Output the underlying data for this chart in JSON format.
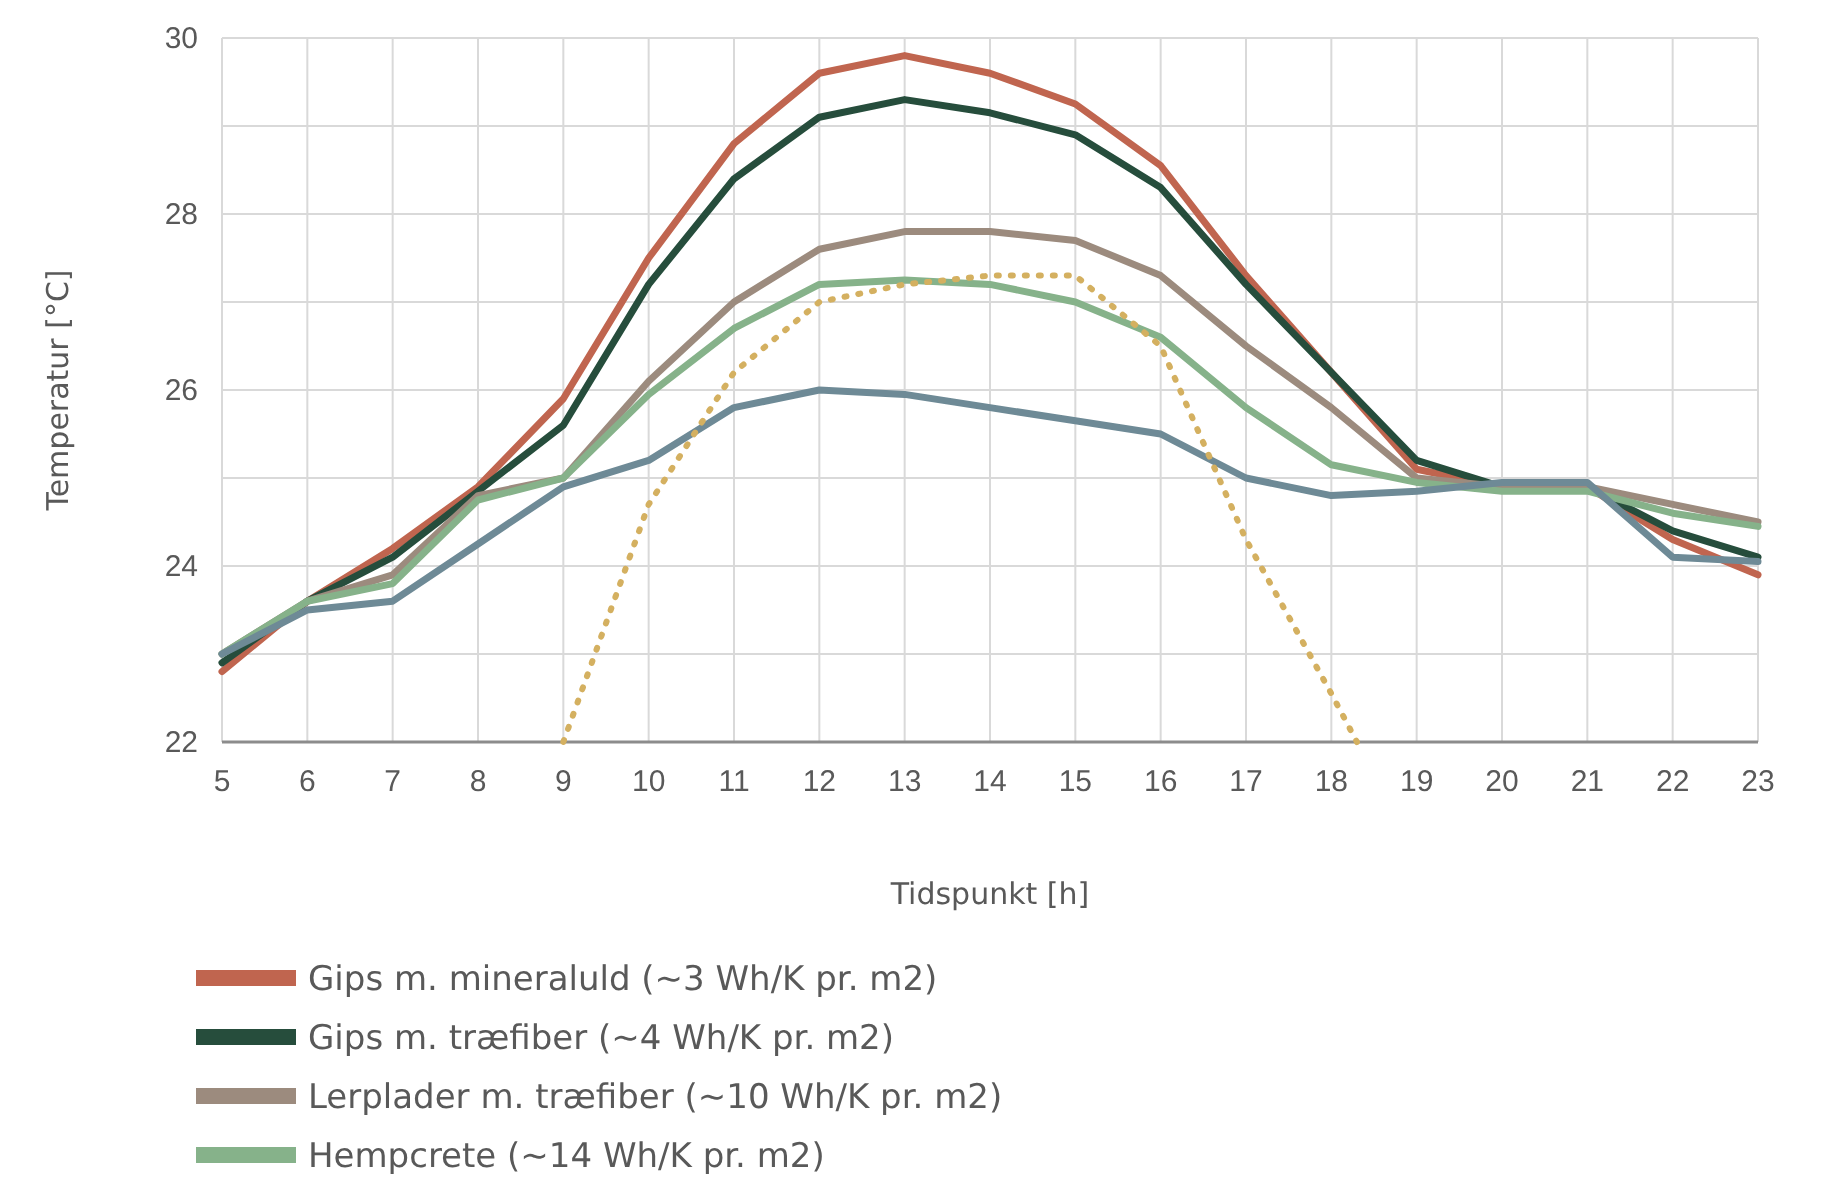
{
  "chart_data": {
    "type": "line",
    "xlabel": "Tidspunkt [h]",
    "ylabel": "Temperatur [°C]",
    "x": [
      5,
      6,
      7,
      8,
      9,
      10,
      11,
      12,
      13,
      14,
      15,
      16,
      17,
      18,
      19,
      20,
      21,
      22,
      23
    ],
    "xlim": [
      5,
      23
    ],
    "xticks": [
      5,
      6,
      7,
      8,
      9,
      10,
      11,
      12,
      13,
      14,
      15,
      16,
      17,
      18,
      19,
      20,
      21,
      22,
      23
    ],
    "ylim": [
      22,
      30
    ],
    "yticks": [
      22,
      {
        "value": 23,
        "label": null
      },
      24,
      {
        "value": 25,
        "label": null
      },
      26,
      {
        "value": 27,
        "label": null
      },
      28,
      {
        "value": 29,
        "label": null
      },
      30
    ],
    "grid": true,
    "legend": "bottom",
    "line_style": "solid",
    "marker": "none",
    "series": [
      {
        "name": "Gips m. mineraluld (~3 Wh/K pr. m2)",
        "color": "#c0654f",
        "values": [
          22.8,
          23.6,
          24.2,
          24.9,
          25.9,
          27.5,
          28.8,
          29.6,
          29.8,
          29.6,
          29.25,
          28.55,
          27.3,
          26.2,
          25.1,
          24.9,
          24.9,
          24.3,
          23.9
        ]
      },
      {
        "name": "Gips m. træfiber (~4 Wh/K pr. m2)",
        "color": "#264d3c",
        "values": [
          22.9,
          23.6,
          24.1,
          24.85,
          25.6,
          27.2,
          28.4,
          29.1,
          29.3,
          29.15,
          28.9,
          28.3,
          27.2,
          26.2,
          25.2,
          24.9,
          24.9,
          24.4,
          24.1
        ]
      },
      {
        "name": "Lerplader m. træfiber (~10 Wh/K pr. m2)",
        "color": "#9c8b7e",
        "values": [
          23.0,
          23.6,
          23.9,
          24.8,
          25.0,
          26.1,
          27.0,
          27.6,
          27.8,
          27.8,
          27.7,
          27.3,
          26.5,
          25.8,
          25.0,
          24.9,
          24.9,
          24.7,
          24.5
        ]
      },
      {
        "name": "Hempcrete (~14 Wh/K pr. m2)",
        "color": "#86b28a",
        "values": [
          23.0,
          23.6,
          23.8,
          24.75,
          25.0,
          25.95,
          26.7,
          27.2,
          27.25,
          27.2,
          27.0,
          26.6,
          25.8,
          25.15,
          24.95,
          24.85,
          24.85,
          24.6,
          24.45
        ]
      },
      {
        "color": "#6e8a96",
        "values": [
          23.0,
          23.5,
          23.6,
          24.25,
          24.9,
          25.2,
          25.8,
          26.0,
          25.95,
          25.8,
          25.65,
          25.5,
          25.0,
          24.8,
          24.85,
          24.95,
          24.95,
          24.1,
          24.05
        ]
      },
      {
        "color": "#d4b060",
        "line_style": "dotted",
        "x": [
          9,
          10,
          11,
          12,
          13,
          14,
          15,
          16,
          17,
          18,
          18.3
        ],
        "values": [
          22.0,
          24.7,
          26.2,
          27.0,
          27.2,
          27.3,
          27.3,
          26.5,
          24.3,
          22.55,
          22.0
        ]
      }
    ]
  }
}
